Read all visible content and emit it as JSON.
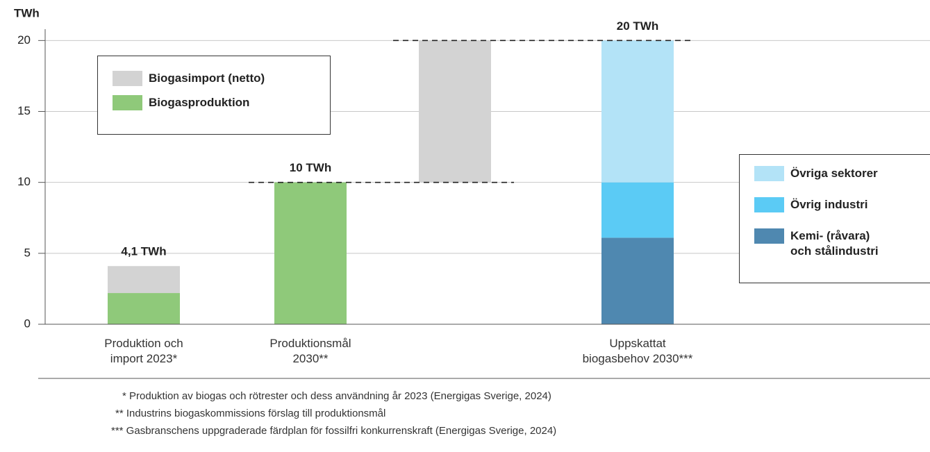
{
  "chart_data": {
    "type": "bar",
    "stacked": true,
    "y_label": "TWh",
    "categories": [
      "Produktion och import 2023*",
      "Produktionsmål 2030**",
      null,
      "Uppskattat biogasbehov 2030***"
    ],
    "series": [
      {
        "name": "Biogasproduktion",
        "color": "#8fc97a",
        "values": [
          2.2,
          10,
          null,
          null
        ]
      },
      {
        "name": "Biogasimport (netto)",
        "color": "#d3d3d3",
        "values": [
          1.9,
          null,
          10,
          null
        ]
      },
      {
        "name": "Kemi- (råvara) och stålindustri",
        "color": "#4f88b0",
        "values": [
          null,
          null,
          null,
          6.1
        ]
      },
      {
        "name": "Övrig industri",
        "color": "#5bcbf5",
        "values": [
          null,
          null,
          null,
          3.9
        ]
      },
      {
        "name": "Övriga sektorer",
        "color": "#b3e3f7",
        "values": [
          null,
          null,
          null,
          10
        ]
      }
    ],
    "annotations": [
      {
        "text": "4,1 TWh",
        "value": 4.1
      },
      {
        "text": "10 TWh",
        "value": 10
      },
      {
        "text": "20 TWh",
        "value": 20
      }
    ],
    "ylim": [
      0,
      20.8
    ],
    "yticks": [
      0,
      5,
      10,
      15,
      20
    ],
    "grid": true,
    "notes": [
      "* Produktion av biogas och rötrester och dess användning år 2023 (Energigas Sverige, 2024)",
      "** Industrins biogaskommissions förslag till produktionsmål",
      "*** Gasbranschens uppgraderade färdplan för fossilfri konkurrenskraft (Energigas Sverige, 2024)"
    ]
  }
}
